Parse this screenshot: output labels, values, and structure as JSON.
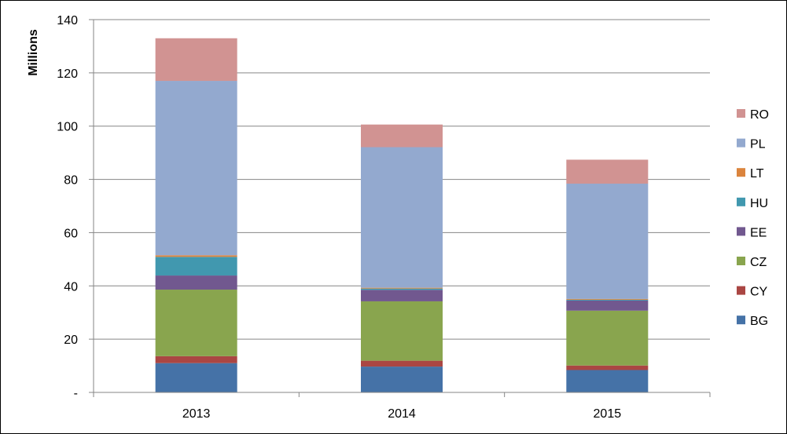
{
  "chart_data": {
    "type": "bar",
    "stacked": true,
    "categories": [
      "2013",
      "2014",
      "2015"
    ],
    "ylabel": "Millions",
    "ylim": [
      0,
      140
    ],
    "yticks": [
      0,
      20,
      40,
      60,
      80,
      100,
      120,
      140
    ],
    "ytick_labels": [
      "-",
      "20",
      "40",
      "60",
      "80",
      "100",
      "120",
      "140"
    ],
    "grid": true,
    "legend_position": "right",
    "series": [
      {
        "name": "BG",
        "color": "#4572A7",
        "values": [
          11.0,
          9.7,
          8.4
        ]
      },
      {
        "name": "CY",
        "color": "#AA4643",
        "values": [
          2.6,
          2.2,
          1.7
        ]
      },
      {
        "name": "CZ",
        "color": "#89A54E",
        "values": [
          25.0,
          22.3,
          20.6
        ]
      },
      {
        "name": "EE",
        "color": "#71588F",
        "values": [
          5.3,
          4.3,
          3.8
        ]
      },
      {
        "name": "HU",
        "color": "#4198AF",
        "values": [
          7.0,
          0.5,
          0.3
        ]
      },
      {
        "name": "LT",
        "color": "#DB843D",
        "values": [
          0.6,
          0.3,
          0.3
        ]
      },
      {
        "name": "PL",
        "color": "#93A9CF",
        "values": [
          65.5,
          52.8,
          43.3
        ]
      },
      {
        "name": "RO",
        "color": "#D19392",
        "values": [
          16.0,
          8.5,
          9.0
        ]
      }
    ]
  }
}
